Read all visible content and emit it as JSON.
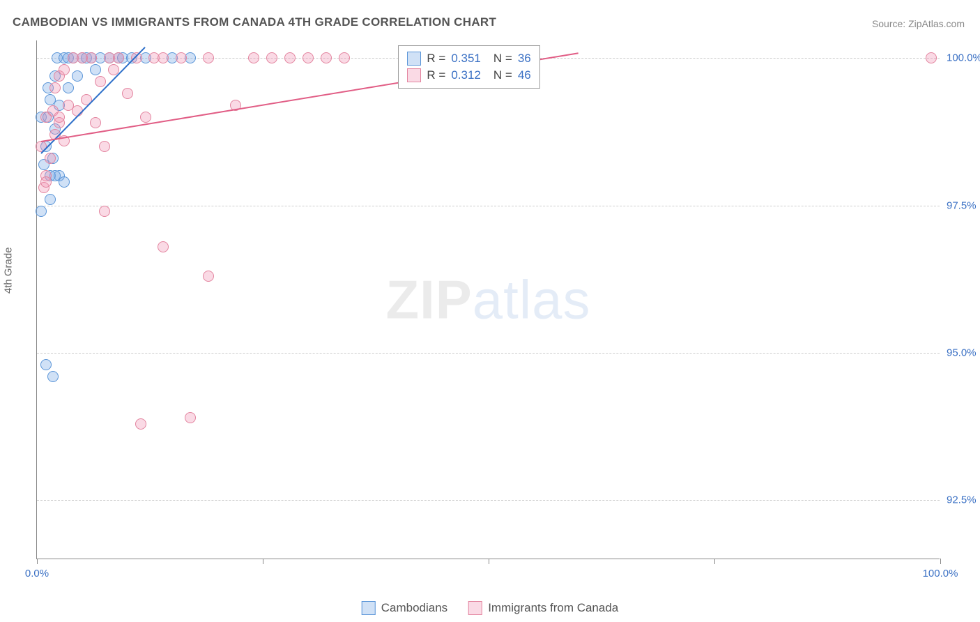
{
  "chart": {
    "type": "scatter",
    "title": "CAMBODIAN VS IMMIGRANTS FROM CANADA 4TH GRADE CORRELATION CHART",
    "source": "Source: ZipAtlas.com",
    "ylabel": "4th Grade",
    "watermark_zip": "ZIP",
    "watermark_atlas": "atlas",
    "background_color": "#ffffff",
    "grid_color": "#cccccc",
    "axis_color": "#888888",
    "text_color": "#555555",
    "value_color": "#3a70c4",
    "xlim": [
      0,
      100
    ],
    "ylim": [
      91.5,
      100.3
    ],
    "xticks": [
      0,
      25,
      50,
      75,
      100
    ],
    "xtick_labels": [
      "0.0%",
      "",
      "",
      "",
      "100.0%"
    ],
    "yticks": [
      92.5,
      95.0,
      97.5,
      100.0
    ],
    "ytick_labels": [
      "92.5%",
      "95.0%",
      "97.5%",
      "100.0%"
    ],
    "marker_radius": 8,
    "marker_stroke_width": 1.2,
    "line_width": 2,
    "series": [
      {
        "name": "Cambodians",
        "fill": "rgba(120,170,230,0.35)",
        "stroke": "#5a95d8",
        "line_color": "#2d6fc9",
        "r_value": "0.351",
        "n_value": "36",
        "points": [
          [
            0.5,
            99.0
          ],
          [
            0.8,
            98.2
          ],
          [
            1.0,
            98.5
          ],
          [
            1.2,
            99.5
          ],
          [
            1.2,
            99.0
          ],
          [
            1.5,
            99.3
          ],
          [
            1.5,
            97.6
          ],
          [
            1.5,
            98.0
          ],
          [
            1.8,
            98.3
          ],
          [
            2.0,
            98.8
          ],
          [
            2.0,
            99.7
          ],
          [
            2.2,
            100.0
          ],
          [
            2.5,
            98.0
          ],
          [
            2.5,
            99.2
          ],
          [
            3.0,
            100.0
          ],
          [
            3.0,
            97.9
          ],
          [
            3.5,
            100.0
          ],
          [
            3.5,
            99.5
          ],
          [
            4.0,
            100.0
          ],
          [
            4.5,
            99.7
          ],
          [
            5.0,
            100.0
          ],
          [
            5.5,
            100.0
          ],
          [
            6.0,
            100.0
          ],
          [
            6.5,
            99.8
          ],
          [
            7.0,
            100.0
          ],
          [
            8.0,
            100.0
          ],
          [
            9.0,
            100.0
          ],
          [
            9.5,
            100.0
          ],
          [
            10.5,
            100.0
          ],
          [
            12.0,
            100.0
          ],
          [
            15.0,
            100.0
          ],
          [
            17.0,
            100.0
          ],
          [
            1.0,
            94.8
          ],
          [
            1.8,
            94.6
          ],
          [
            0.5,
            97.4
          ],
          [
            2.0,
            98.0
          ]
        ],
        "trend": {
          "x1": 0.5,
          "y1": 98.4,
          "x2": 12,
          "y2": 100.2
        }
      },
      {
        "name": "Immigrants from Canada",
        "fill": "rgba(240,150,180,0.35)",
        "stroke": "#e3849f",
        "line_color": "#e15d85",
        "r_value": "0.312",
        "n_value": "46",
        "points": [
          [
            0.5,
            98.5
          ],
          [
            0.8,
            97.8
          ],
          [
            1.0,
            99.0
          ],
          [
            1.0,
            98.0
          ],
          [
            1.5,
            98.3
          ],
          [
            1.8,
            99.1
          ],
          [
            2.0,
            99.5
          ],
          [
            2.0,
            98.7
          ],
          [
            2.5,
            99.7
          ],
          [
            2.5,
            98.9
          ],
          [
            3.0,
            98.6
          ],
          [
            3.0,
            99.8
          ],
          [
            3.5,
            99.2
          ],
          [
            4.0,
            100.0
          ],
          [
            4.5,
            99.1
          ],
          [
            5.0,
            100.0
          ],
          [
            5.5,
            99.3
          ],
          [
            6.0,
            100.0
          ],
          [
            6.5,
            98.9
          ],
          [
            7.0,
            99.6
          ],
          [
            7.5,
            98.5
          ],
          [
            8.0,
            100.0
          ],
          [
            8.5,
            99.8
          ],
          [
            9.0,
            100.0
          ],
          [
            10.0,
            99.4
          ],
          [
            11.0,
            100.0
          ],
          [
            12.0,
            99.0
          ],
          [
            13.0,
            100.0
          ],
          [
            14.0,
            100.0
          ],
          [
            16.0,
            100.0
          ],
          [
            19.0,
            100.0
          ],
          [
            22.0,
            99.2
          ],
          [
            24.0,
            100.0
          ],
          [
            26.0,
            100.0
          ],
          [
            28.0,
            100.0
          ],
          [
            30.0,
            100.0
          ],
          [
            32.0,
            100.0
          ],
          [
            34.0,
            100.0
          ],
          [
            99.0,
            100.0
          ],
          [
            7.5,
            97.4
          ],
          [
            14.0,
            96.8
          ],
          [
            19.0,
            96.3
          ],
          [
            11.5,
            93.8
          ],
          [
            17.0,
            93.9
          ],
          [
            1.0,
            97.9
          ],
          [
            2.5,
            99.0
          ]
        ],
        "trend": {
          "x1": 0.5,
          "y1": 98.6,
          "x2": 60,
          "y2": 100.1
        }
      }
    ],
    "stats_box": {
      "left_pct": 40,
      "top_pct": 1
    },
    "legend_labels": [
      "Cambodians",
      "Immigrants from Canada"
    ]
  }
}
